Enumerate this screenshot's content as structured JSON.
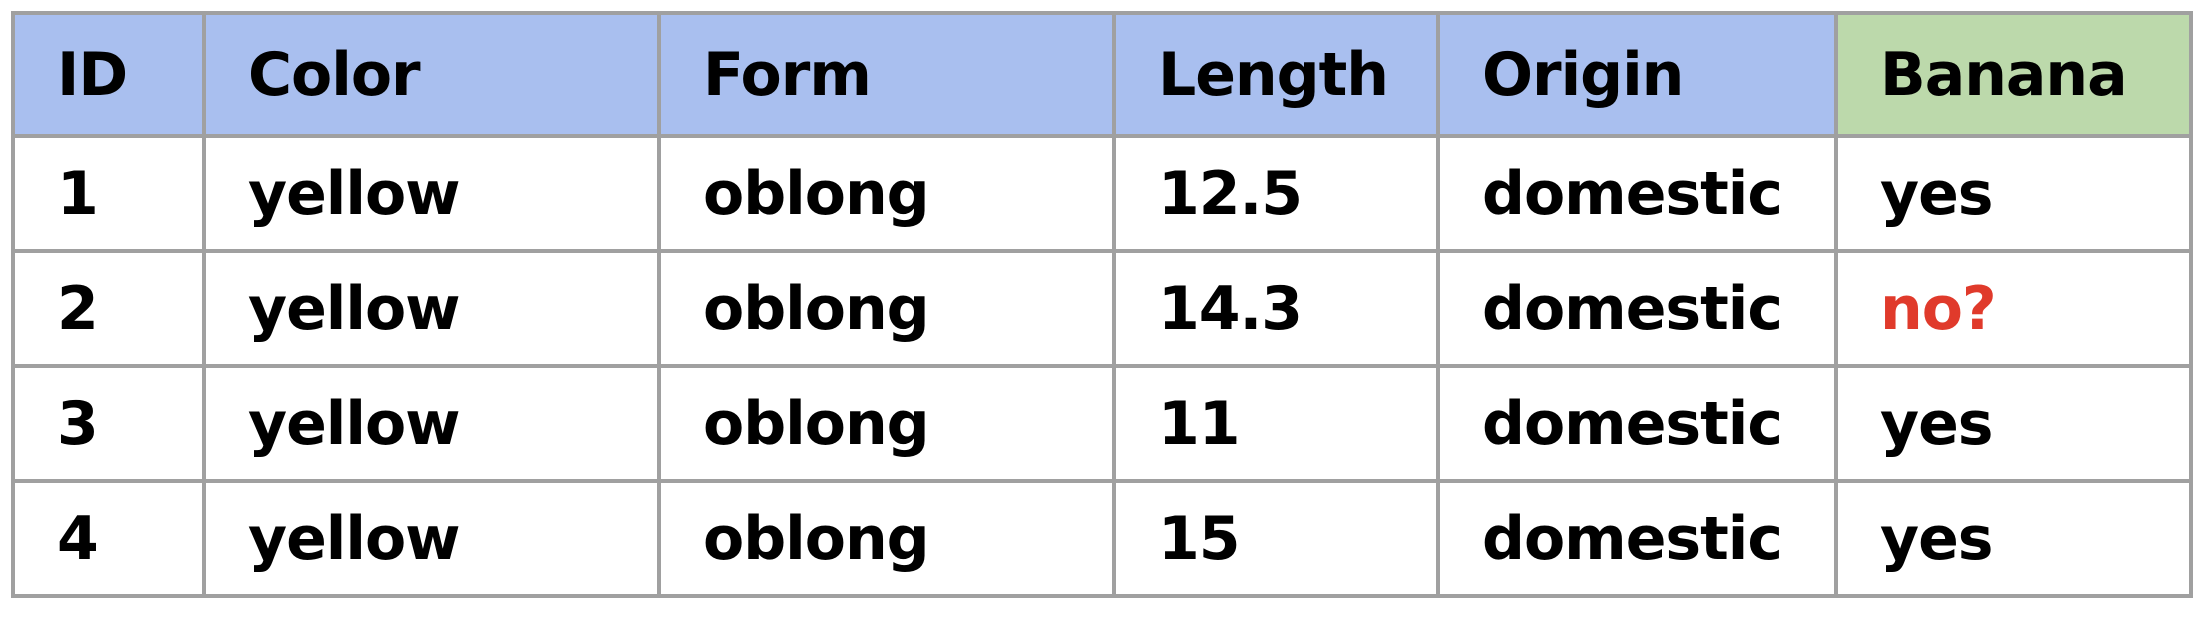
{
  "table": {
    "headers": [
      "ID",
      "Color",
      "Form",
      "Length",
      "Origin",
      "Banana"
    ],
    "rows": [
      [
        "1",
        "yellow",
        "oblong",
        "12.5",
        "domestic",
        "yes"
      ],
      [
        "2",
        "yellow",
        "oblong",
        "14.3",
        "domestic",
        "no?"
      ],
      [
        "3",
        "yellow",
        "oblong",
        "11",
        "domestic",
        "yes"
      ],
      [
        "4",
        "yellow",
        "oblong",
        "15",
        "domestic",
        "yes"
      ]
    ],
    "colors": {
      "header_bg": "#a9bfef",
      "target_header_bg": "#bcd9ab",
      "border": "#a0a0a0",
      "flagged_text": "#e03a2b"
    }
  }
}
